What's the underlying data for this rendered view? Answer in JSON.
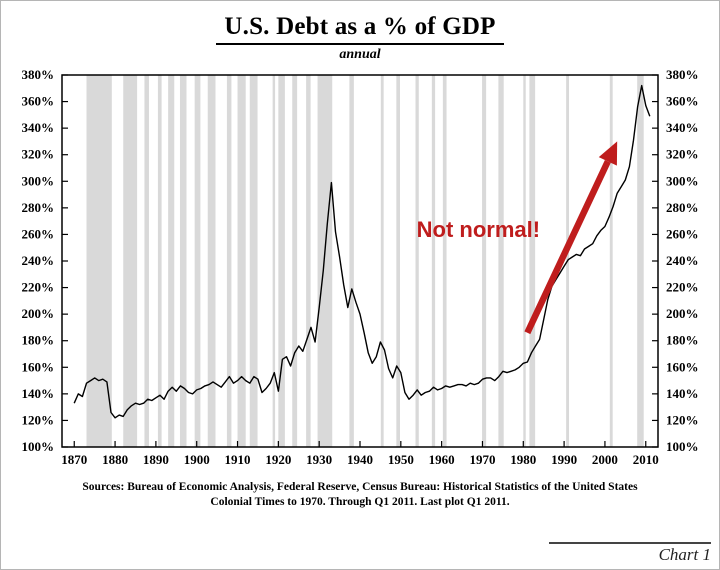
{
  "page": {
    "title": "U.S. Debt as a % of GDP",
    "subtitle": "annual",
    "footer_line1": "Sources: Bureau of Economic Analysis, Federal Reserve, Census Bureau: Historical Statistics of the United States",
    "footer_line2": "Colonial Times to 1970.  Through Q1 2011. Last plot Q1 2011.",
    "caption": "Chart 1"
  },
  "chart_data": {
    "type": "line",
    "title": "U.S. Debt as a % of GDP",
    "subtitle": "annual",
    "xlabel": "",
    "ylabel": "",
    "xlim": [
      1867,
      2013
    ],
    "ylim": [
      100,
      380
    ],
    "ytick_step": 20,
    "ytick_suffix": "%",
    "xticks": [
      1870,
      1880,
      1890,
      1900,
      1910,
      1920,
      1930,
      1940,
      1950,
      1960,
      1970,
      1980,
      1990,
      2000,
      2010
    ],
    "line_color": "#000000",
    "band_color": "#d9d9d9",
    "background": "#ffffff",
    "legend": "none",
    "grid": "off",
    "recession_bands": [
      [
        1873,
        1879.2
      ],
      [
        1882,
        1885.4
      ],
      [
        1887.2,
        1888.3
      ],
      [
        1890.5,
        1891.4
      ],
      [
        1893,
        1894.5
      ],
      [
        1895.9,
        1897.5
      ],
      [
        1899.5,
        1900.9
      ],
      [
        1902.7,
        1904.6
      ],
      [
        1907.4,
        1908.5
      ],
      [
        1910,
        1912
      ],
      [
        1913,
        1914.9
      ],
      [
        1918.6,
        1919.2
      ],
      [
        1920,
        1921.6
      ],
      [
        1923.4,
        1924.6
      ],
      [
        1926.8,
        1927.9
      ],
      [
        1929.6,
        1933.2
      ],
      [
        1937.4,
        1938.5
      ],
      [
        1945.1,
        1945.8
      ],
      [
        1948.9,
        1949.8
      ],
      [
        1953.6,
        1954.4
      ],
      [
        1957.6,
        1958.4
      ],
      [
        1960.3,
        1961.2
      ],
      [
        1969.9,
        1970.9
      ],
      [
        1973.9,
        1975.2
      ],
      [
        1980,
        1980.6
      ],
      [
        1981.5,
        1982.9
      ],
      [
        1990.5,
        1991.2
      ],
      [
        2001.2,
        2001.9
      ],
      [
        2007.9,
        2009.5
      ]
    ],
    "annotation": {
      "text": "Not normal!",
      "x": 1969,
      "y": 258,
      "color": "#bf1d1d"
    },
    "arrow": {
      "x1": 1981,
      "y1": 186,
      "x2": 2003,
      "y2": 330,
      "color": "#bf1d1d"
    },
    "x": [
      1870,
      1871,
      1872,
      1873,
      1874,
      1875,
      1876,
      1877,
      1878,
      1879,
      1880,
      1881,
      1882,
      1883,
      1884,
      1885,
      1886,
      1887,
      1888,
      1889,
      1890,
      1891,
      1892,
      1893,
      1894,
      1895,
      1896,
      1897,
      1898,
      1899,
      1900,
      1901,
      1902,
      1903,
      1904,
      1905,
      1906,
      1907,
      1908,
      1909,
      1910,
      1911,
      1912,
      1913,
      1914,
      1915,
      1916,
      1917,
      1918,
      1919,
      1920,
      1921,
      1922,
      1923,
      1924,
      1925,
      1926,
      1927,
      1928,
      1929,
      1930,
      1931,
      1932,
      1933,
      1934,
      1935,
      1936,
      1937,
      1938,
      1939,
      1940,
      1941,
      1942,
      1943,
      1944,
      1945,
      1946,
      1947,
      1948,
      1949,
      1950,
      1951,
      1952,
      1953,
      1954,
      1955,
      1956,
      1957,
      1958,
      1959,
      1960,
      1961,
      1962,
      1963,
      1964,
      1965,
      1966,
      1967,
      1968,
      1969,
      1970,
      1971,
      1972,
      1973,
      1974,
      1975,
      1976,
      1977,
      1978,
      1979,
      1980,
      1981,
      1982,
      1983,
      1984,
      1985,
      1986,
      1987,
      1988,
      1989,
      1990,
      1991,
      1992,
      1993,
      1994,
      1995,
      1996,
      1997,
      1998,
      1999,
      2000,
      2001,
      2002,
      2003,
      2004,
      2005,
      2006,
      2007,
      2008,
      2009,
      2010,
      2011
    ],
    "values": [
      133,
      140,
      138,
      148,
      150,
      152,
      150,
      151,
      149,
      126,
      122,
      124,
      123,
      128,
      131,
      133,
      132,
      133,
      136,
      135,
      137,
      139,
      136,
      142,
      145,
      142,
      146,
      144,
      141,
      140,
      143,
      144,
      146,
      147,
      149,
      147,
      145,
      149,
      153,
      148,
      150,
      153,
      150,
      148,
      153,
      151,
      141,
      144,
      148,
      156,
      142,
      166,
      168,
      161,
      171,
      176,
      172,
      181,
      190,
      179,
      205,
      233,
      268,
      299,
      262,
      243,
      222,
      205,
      219,
      209,
      200,
      186,
      171,
      163,
      168,
      179,
      173,
      159,
      152,
      161,
      156,
      141,
      136,
      139,
      143,
      139,
      141,
      142,
      145,
      143,
      144,
      146,
      145,
      146,
      147,
      147,
      146,
      148,
      147,
      148,
      151,
      152,
      152,
      150,
      153,
      157,
      156,
      157,
      158,
      160,
      163,
      164,
      171,
      176,
      181,
      196,
      211,
      221,
      226,
      231,
      236,
      241,
      243,
      245,
      244,
      249,
      251,
      253,
      259,
      263,
      266,
      273,
      281,
      291,
      296,
      301,
      311,
      331,
      356,
      372,
      357,
      349
    ]
  }
}
